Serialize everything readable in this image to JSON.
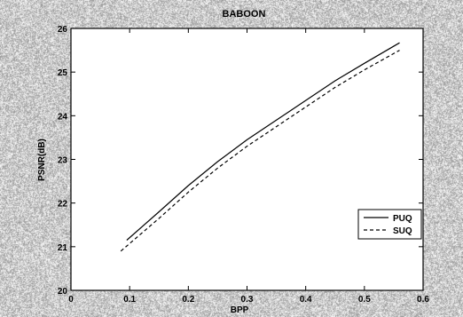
{
  "chart_data": {
    "type": "line",
    "title": "BABOON",
    "xlabel": "BPP",
    "ylabel": "PSNR(dB)",
    "xlim": [
      0,
      0.6
    ],
    "ylim": [
      20,
      26
    ],
    "x_ticks": [
      "0",
      "0.1",
      "0.2",
      "0.3",
      "0.4",
      "0.5",
      "0.6"
    ],
    "y_ticks": [
      "20",
      "21",
      "22",
      "23",
      "24",
      "25",
      "26"
    ],
    "grid": false,
    "legend_position": "lower-right",
    "series": [
      {
        "name": "PUQ",
        "line_style": "solid",
        "color": "#000000",
        "x": [
          0.095,
          0.15,
          0.2,
          0.25,
          0.3,
          0.35,
          0.4,
          0.45,
          0.5,
          0.56
        ],
        "y": [
          21.15,
          21.8,
          22.4,
          22.95,
          23.45,
          23.9,
          24.35,
          24.8,
          25.2,
          25.67
        ]
      },
      {
        "name": "SUQ",
        "line_style": "dashed",
        "color": "#000000",
        "x": [
          0.085,
          0.15,
          0.2,
          0.25,
          0.3,
          0.35,
          0.4,
          0.45,
          0.5,
          0.56
        ],
        "y": [
          20.9,
          21.65,
          22.25,
          22.8,
          23.3,
          23.75,
          24.2,
          24.65,
          25.05,
          25.5
        ]
      }
    ]
  }
}
